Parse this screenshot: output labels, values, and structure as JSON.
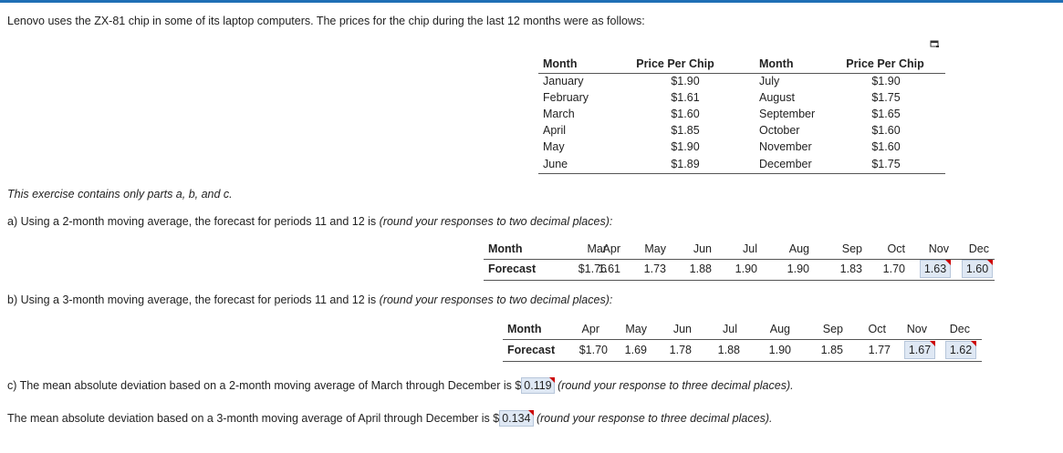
{
  "intro": "Lenovo uses the ZX-81 chip in some of its laptop computers. The prices for the chip during the last 12 months were as follows:",
  "price_table": {
    "headers": {
      "month1": "Month",
      "price1": "Price Per Chip",
      "month2": "Month",
      "price2": "Price Per Chip"
    },
    "rows": [
      {
        "m1": "January",
        "p1": "$1.90",
        "m2": "July",
        "p2": "$1.90"
      },
      {
        "m1": "February",
        "p1": "$1.61",
        "m2": "August",
        "p2": "$1.75"
      },
      {
        "m1": "March",
        "p1": "$1.60",
        "m2": "September",
        "p2": "$1.65"
      },
      {
        "m1": "April",
        "p1": "$1.85",
        "m2": "October",
        "p2": "$1.60"
      },
      {
        "m1": "May",
        "p1": "$1.90",
        "m2": "November",
        "p2": "$1.60"
      },
      {
        "m1": "June",
        "p1": "$1.89",
        "m2": "December",
        "p2": "$1.75"
      }
    ]
  },
  "note": "This exercise contains only parts a, b, and c.",
  "part_a": {
    "prompt": "a) Using a 2-month moving average, the forecast for periods 11 and 12 is",
    "instruction": "(round your responses to two decimal places):",
    "month_label": "Month",
    "forecast_label": "Forecast",
    "months": [
      "Mar",
      "Apr",
      "May",
      "Jun",
      "Jul",
      "Aug",
      "Sep",
      "Oct",
      "Nov",
      "Dec"
    ],
    "forecasts": [
      "$1.76",
      "1.61",
      "1.73",
      "1.88",
      "1.90",
      "1.90",
      "1.83",
      "1.70",
      "1.63",
      "1.60"
    ]
  },
  "part_b": {
    "prompt": "b) Using a 3-month moving average, the forecast for periods 11 and 12 is",
    "instruction": "(round your responses to two decimal places):",
    "month_label": "Month",
    "forecast_label": "Forecast",
    "months": [
      "Apr",
      "May",
      "Jun",
      "Jul",
      "Aug",
      "Sep",
      "Oct",
      "Nov",
      "Dec"
    ],
    "forecasts": [
      "$1.70",
      "1.69",
      "1.78",
      "1.88",
      "1.90",
      "1.85",
      "1.77",
      "1.67",
      "1.62"
    ]
  },
  "part_c": {
    "line1_prefix": "c) The mean absolute deviation based on a 2-month moving average of March through December is $",
    "line1_answer": "0.119",
    "line1_instruction": "(round your response to three decimal places).",
    "line2_prefix": "The mean absolute deviation based on a 3-month moving average of April through December is $",
    "line2_answer": "0.134",
    "line2_instruction": "(round your response to three decimal places)."
  },
  "icons": {
    "copy": "copy-table-icon"
  },
  "colors": {
    "accent": "#1f6fb5",
    "answer_bg": "#dfe8f4",
    "flag": "#cc0000"
  }
}
